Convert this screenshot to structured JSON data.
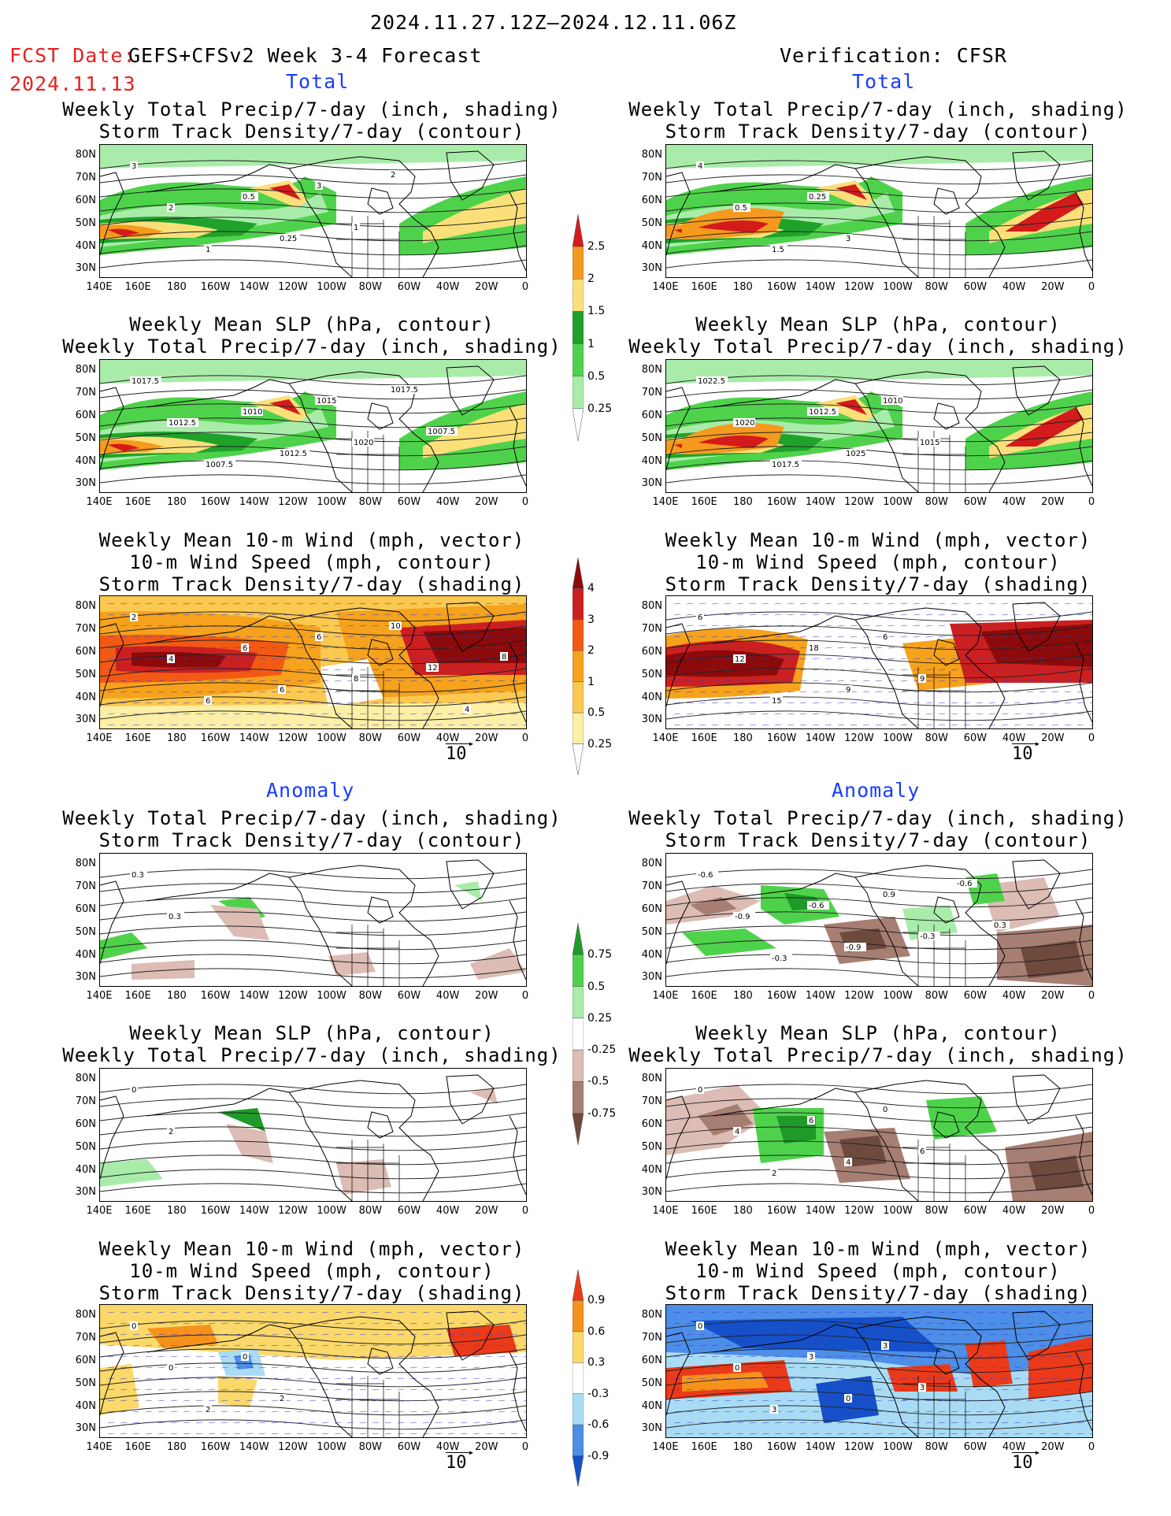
{
  "header": {
    "date_range": "2024.11.27.12Z–2024.12.11.06Z",
    "fcst_label": "FCST Date:",
    "fcst_date": "2024.11.13",
    "model": "GEFS+CFSv2 Week 3-4 Forecast",
    "verification": "Verification: CFSR"
  },
  "sections": {
    "total": "Total",
    "anomaly": "Anomaly"
  },
  "titles": {
    "precip_storm": [
      "Weekly Total Precip/7-day (inch, shading)",
      "Storm Track Density/7-day (contour)"
    ],
    "slp_precip": [
      "Weekly Mean SLP (hPa, contour)",
      "Weekly Total Precip/7-day (inch, shading)"
    ],
    "wind_storm": [
      "Weekly Mean 10-m Wind (mph, vector)",
      "10-m Wind Speed (mph, contour)",
      "Storm Track Density/7-day (shading)"
    ]
  },
  "axes": {
    "lat_labels": [
      "80N",
      "70N",
      "60N",
      "50N",
      "40N",
      "30N"
    ],
    "lon_labels": [
      "140E",
      "160E",
      "180",
      "160W",
      "140W",
      "120W",
      "100W",
      "80W",
      "60W",
      "40W",
      "20W",
      "0"
    ]
  },
  "vector_ref": "10",
  "colorbars": {
    "precip_total": {
      "labels": [
        "2.5",
        "2",
        "1.5",
        "1",
        "0.5",
        "0.25"
      ],
      "colors": [
        "#d41b1b",
        "#f59a1e",
        "#fbe07a",
        "#1fa22a",
        "#4fd24b",
        "#a9ecaa",
        "#ffffff"
      ]
    },
    "storm_total": {
      "labels": [
        "4",
        "3",
        "2",
        "1",
        "0.5",
        "0.25"
      ],
      "colors": [
        "#8c0a0a",
        "#cc2020",
        "#f25a14",
        "#f6a21c",
        "#fbc850",
        "#fdf0a6",
        "#ffffff"
      ]
    },
    "precip_anom": {
      "labels": [
        "0.75",
        "0.5",
        "0.25",
        "-0.25",
        "-0.5",
        "-0.75"
      ],
      "colors": [
        "#1f9a28",
        "#4fd24b",
        "#a9ecaa",
        "#ffffff",
        "#dcbcb4",
        "#a77e72",
        "#6e4a3c"
      ]
    },
    "storm_anom": {
      "labels": [
        "0.9",
        "0.6",
        "0.3",
        "-0.3",
        "-0.6",
        "-0.9"
      ],
      "colors": [
        "#ea3a1a",
        "#f6921c",
        "#fbd86a",
        "#ffffff",
        "#a9dcf4",
        "#4c8ee8",
        "#1550c8"
      ]
    }
  },
  "contour_labels": {
    "fcst_precip_storm": [
      "3",
      "2",
      "1",
      "0.5",
      "0.25",
      "3",
      "1",
      "2"
    ],
    "veri_precip_storm": [
      "4",
      "0.5",
      "1.5",
      "0.25",
      "3"
    ],
    "fcst_slp": [
      "1017.5",
      "1012.5",
      "1007.5",
      "1010",
      "1012.5",
      "1015",
      "1020",
      "1017.5",
      "1007.5"
    ],
    "veri_slp": [
      "1022.5",
      "1020",
      "1017.5",
      "1012.5",
      "1025",
      "1010",
      "1015"
    ],
    "fcst_wind": [
      "2",
      "4",
      "6",
      "6",
      "6",
      "6",
      "8",
      "10",
      "12",
      "4",
      "8"
    ],
    "veri_wind": [
      "6",
      "12",
      "15",
      "18",
      "9",
      "6",
      "9"
    ],
    "fcst_anom_precip": [
      "0.3",
      "0.3"
    ],
    "veri_anom_precip": [
      "-0.6",
      "-0.9",
      "-0.3",
      "-0.6",
      "-0.9",
      "0.9",
      "-0.3",
      "-0.6",
      "0.3"
    ],
    "fcst_anom_slp": [
      "0",
      "2"
    ],
    "veri_anom_slp": [
      "0",
      "4",
      "2",
      "6",
      "4",
      "0",
      "6"
    ],
    "fcst_anom_wind": [
      "0",
      "0",
      "2",
      "0",
      "2"
    ],
    "veri_anom_wind": [
      "0",
      "0",
      "3",
      "3",
      "0",
      "3",
      "3"
    ]
  }
}
